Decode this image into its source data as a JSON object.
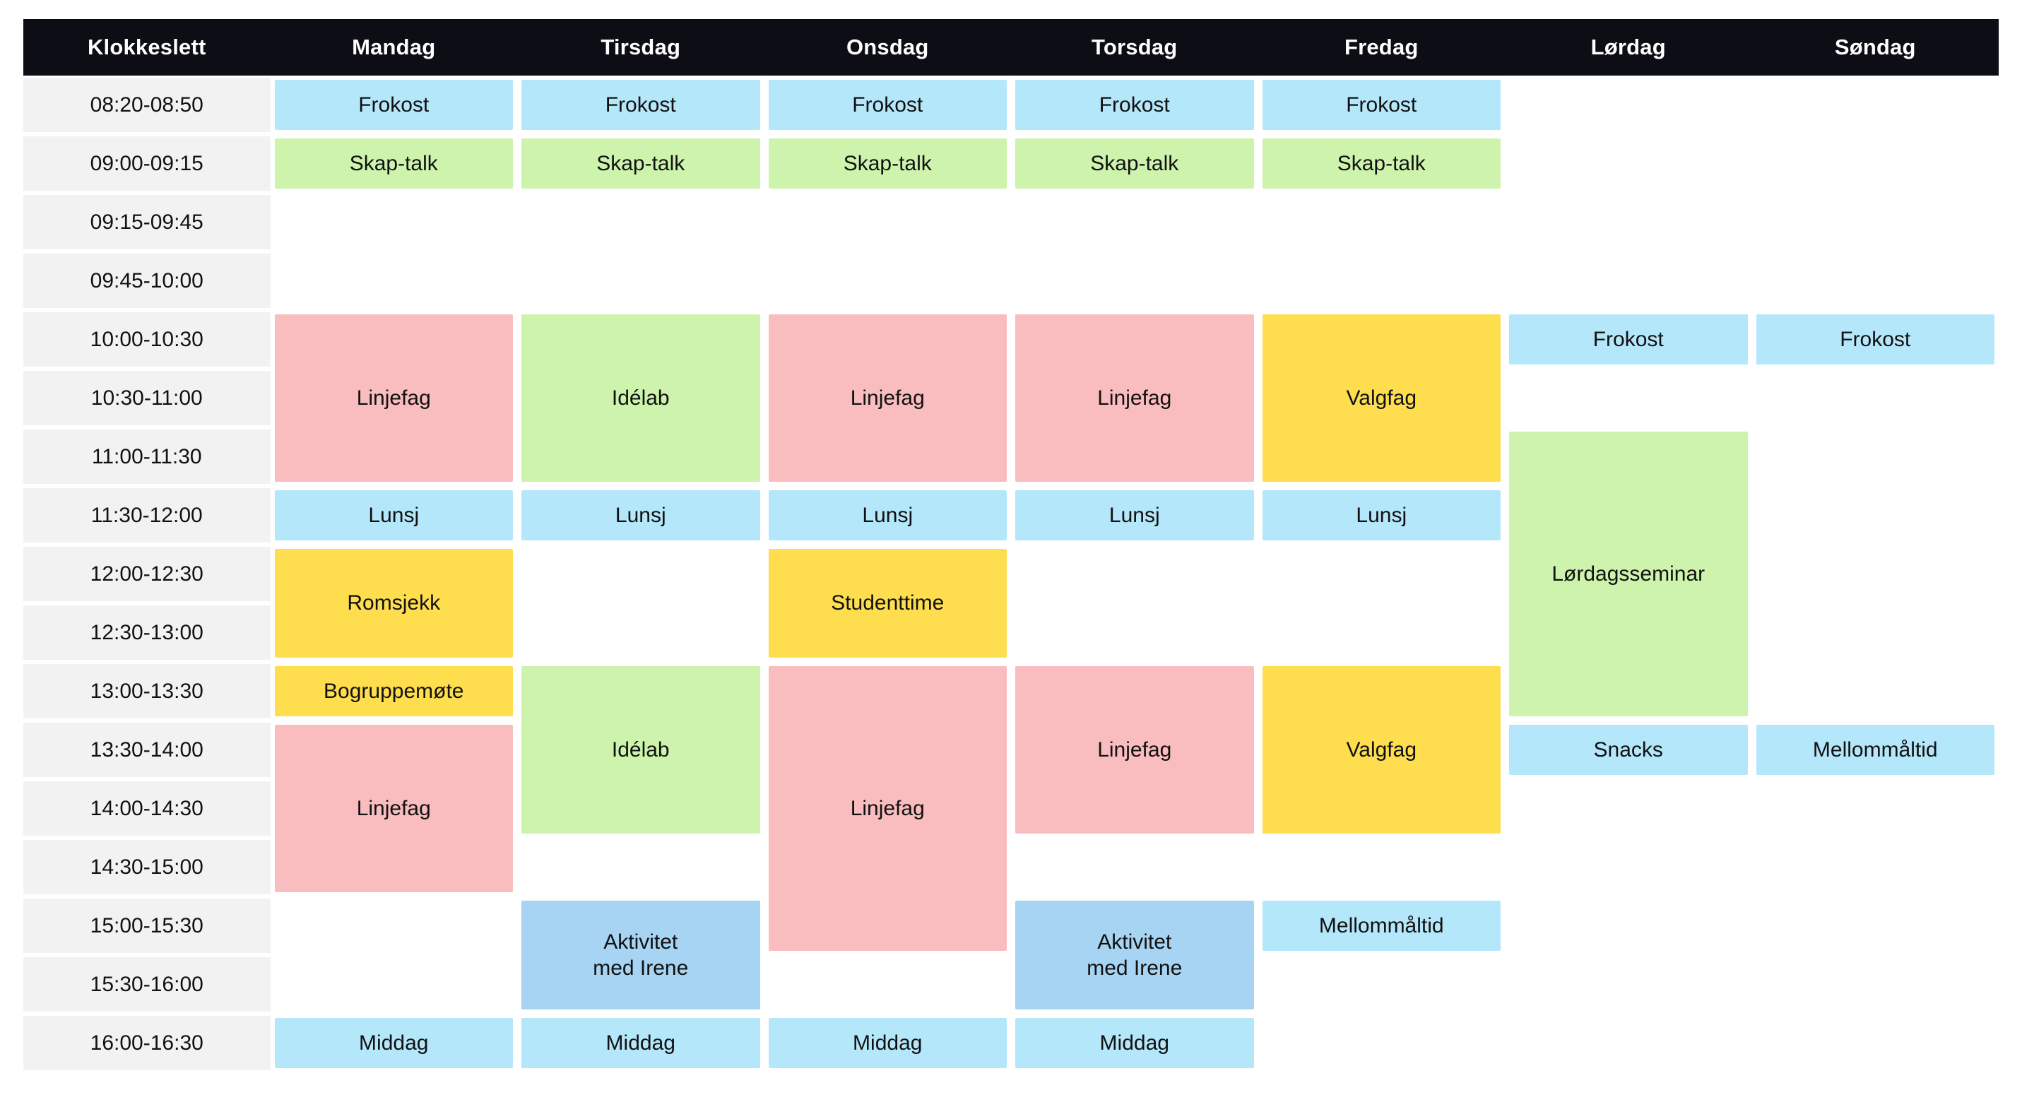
{
  "colors": {
    "header_bg": "#0d0d15",
    "header_text": "#ffffff",
    "time_bg": "#f2f2f2",
    "text": "#111111",
    "blue": "#b5e7fb",
    "blue_dark": "#a6d4f2",
    "green": "#cdf3ad",
    "pink": "#f9bdbf",
    "yellow": "#fede4e"
  },
  "table": {
    "header": [
      "Klokkeslett",
      "Mandag",
      "Tirsdag",
      "Onsdag",
      "Torsdag",
      "Fredag",
      "Lørdag",
      "Søndag"
    ],
    "time_slots": [
      "08:20-08:50",
      "09:00-09:15",
      "09:15-09:45",
      "09:45-10:00",
      "10:00-10:30",
      "10:30-11:00",
      "11:00-11:30",
      "11:30-12:00",
      "12:00-12:30",
      "12:30-13:00",
      "13:00-13:30",
      "13:30-14:00",
      "14:00-14:30",
      "14:30-15:00",
      "15:00-15:30",
      "15:30-16:00",
      "16:00-16:30"
    ],
    "events": [
      {
        "label": "Frokost",
        "col": 1,
        "row": 1,
        "span": 1,
        "color": "blue"
      },
      {
        "label": "Frokost",
        "col": 2,
        "row": 1,
        "span": 1,
        "color": "blue"
      },
      {
        "label": "Frokost",
        "col": 3,
        "row": 1,
        "span": 1,
        "color": "blue"
      },
      {
        "label": "Frokost",
        "col": 4,
        "row": 1,
        "span": 1,
        "color": "blue"
      },
      {
        "label": "Frokost",
        "col": 5,
        "row": 1,
        "span": 1,
        "color": "blue"
      },
      {
        "label": "Skap-talk",
        "col": 1,
        "row": 2,
        "span": 1,
        "color": "green"
      },
      {
        "label": "Skap-talk",
        "col": 2,
        "row": 2,
        "span": 1,
        "color": "green"
      },
      {
        "label": "Skap-talk",
        "col": 3,
        "row": 2,
        "span": 1,
        "color": "green"
      },
      {
        "label": "Skap-talk",
        "col": 4,
        "row": 2,
        "span": 1,
        "color": "green"
      },
      {
        "label": "Skap-talk",
        "col": 5,
        "row": 2,
        "span": 1,
        "color": "green"
      },
      {
        "label": "Linjefag",
        "col": 1,
        "row": 5,
        "span": 3,
        "color": "pink"
      },
      {
        "label": "Idélab",
        "col": 2,
        "row": 5,
        "span": 3,
        "color": "green"
      },
      {
        "label": "Linjefag",
        "col": 3,
        "row": 5,
        "span": 3,
        "color": "pink"
      },
      {
        "label": "Linjefag",
        "col": 4,
        "row": 5,
        "span": 3,
        "color": "pink"
      },
      {
        "label": "Valgfag",
        "col": 5,
        "row": 5,
        "span": 3,
        "color": "yellow"
      },
      {
        "label": "Frokost",
        "col": 6,
        "row": 5,
        "span": 1,
        "color": "blue"
      },
      {
        "label": "Frokost",
        "col": 7,
        "row": 5,
        "span": 1,
        "color": "blue"
      },
      {
        "label": "Lørdagsseminar",
        "col": 6,
        "row": 7,
        "span": 5,
        "color": "green"
      },
      {
        "label": "Lunsj",
        "col": 1,
        "row": 8,
        "span": 1,
        "color": "blue"
      },
      {
        "label": "Lunsj",
        "col": 2,
        "row": 8,
        "span": 1,
        "color": "blue"
      },
      {
        "label": "Lunsj",
        "col": 3,
        "row": 8,
        "span": 1,
        "color": "blue"
      },
      {
        "label": "Lunsj",
        "col": 4,
        "row": 8,
        "span": 1,
        "color": "blue"
      },
      {
        "label": "Lunsj",
        "col": 5,
        "row": 8,
        "span": 1,
        "color": "blue"
      },
      {
        "label": "Romsjekk",
        "col": 1,
        "row": 9,
        "span": 2,
        "color": "yellow"
      },
      {
        "label": "Studenttime",
        "col": 3,
        "row": 9,
        "span": 2,
        "color": "yellow"
      },
      {
        "label": "Bogruppemøte",
        "col": 1,
        "row": 11,
        "span": 1,
        "color": "yellow"
      },
      {
        "label": "Idélab",
        "col": 2,
        "row": 11,
        "span": 3,
        "color": "green"
      },
      {
        "label": "Linjefag",
        "col": 3,
        "row": 11,
        "span": 5,
        "color": "pink"
      },
      {
        "label": "Linjefag",
        "col": 4,
        "row": 11,
        "span": 3,
        "color": "pink"
      },
      {
        "label": "Valgfag",
        "col": 5,
        "row": 11,
        "span": 3,
        "color": "yellow"
      },
      {
        "label": "Linjefag",
        "col": 1,
        "row": 12,
        "span": 3,
        "color": "pink"
      },
      {
        "label": "Snacks",
        "col": 6,
        "row": 12,
        "span": 1,
        "color": "blue"
      },
      {
        "label": "Mellommåltid",
        "col": 7,
        "row": 12,
        "span": 1,
        "color": "blue"
      },
      {
        "label": "Aktivitet\nmed Irene",
        "col": 2,
        "row": 15,
        "span": 2,
        "color": "blue_dark"
      },
      {
        "label": "Aktivitet\nmed Irene",
        "col": 4,
        "row": 15,
        "span": 2,
        "color": "blue_dark"
      },
      {
        "label": "Mellommåltid",
        "col": 5,
        "row": 15,
        "span": 1,
        "color": "blue"
      },
      {
        "label": "Middag",
        "col": 1,
        "row": 17,
        "span": 1,
        "color": "blue"
      },
      {
        "label": "Middag",
        "col": 2,
        "row": 17,
        "span": 1,
        "color": "blue"
      },
      {
        "label": "Middag",
        "col": 3,
        "row": 17,
        "span": 1,
        "color": "blue"
      },
      {
        "label": "Middag",
        "col": 4,
        "row": 17,
        "span": 1,
        "color": "blue"
      }
    ]
  }
}
